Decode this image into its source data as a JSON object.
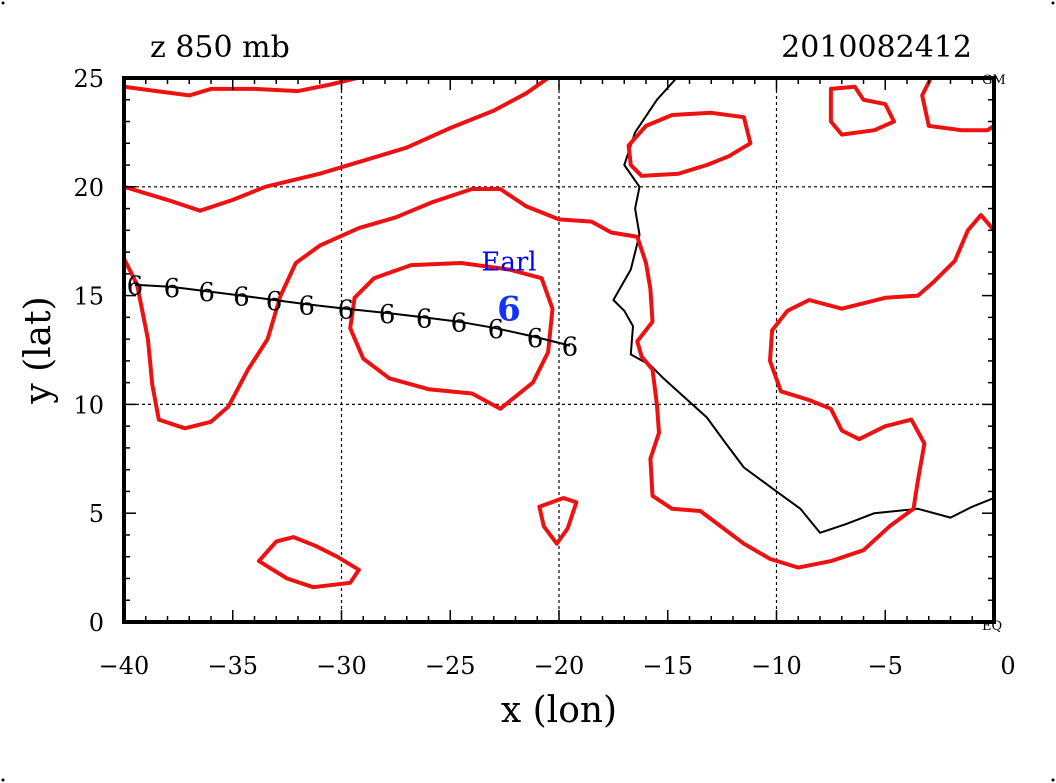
{
  "header": {
    "field": "z 850 mb",
    "datetime": "2010082412"
  },
  "axes": {
    "xlabel": "x (lon)",
    "ylabel": "y (lat)",
    "xlim": [
      -40,
      0
    ],
    "ylim": [
      0,
      25
    ],
    "xticks": [
      -40,
      -35,
      -30,
      -25,
      -20,
      -15,
      -10,
      -5,
      0
    ],
    "yticks": [
      0,
      5,
      10,
      15,
      20,
      25
    ],
    "gridlines_lon": [
      -30,
      -20,
      -10
    ],
    "gridlines_lat": [
      10,
      20
    ]
  },
  "corner_labels": {
    "top_right": "GM",
    "bottom_right": "EQ"
  },
  "storm": {
    "name": "Earl",
    "symbol": "6",
    "name_color": "#0000ff",
    "current_position": {
      "lon": -22.3,
      "lat": 14.5
    },
    "track": [
      {
        "lon": -39.5,
        "lat": 15.5
      },
      {
        "lon": -37.8,
        "lat": 15.4
      },
      {
        "lon": -36.2,
        "lat": 15.2
      },
      {
        "lon": -34.6,
        "lat": 15.0
      },
      {
        "lon": -33.1,
        "lat": 14.8
      },
      {
        "lon": -31.6,
        "lat": 14.6
      },
      {
        "lon": -29.8,
        "lat": 14.4
      },
      {
        "lon": -27.9,
        "lat": 14.2
      },
      {
        "lon": -26.2,
        "lat": 14.0
      },
      {
        "lon": -24.6,
        "lat": 13.8
      },
      {
        "lon": -22.9,
        "lat": 13.5
      },
      {
        "lon": -21.1,
        "lat": 13.1
      },
      {
        "lon": -19.5,
        "lat": 12.7
      }
    ]
  },
  "colors": {
    "contour": "#ee1111",
    "coastline": "#000000",
    "grid": "#000000",
    "storm_current": "#1133ff"
  },
  "contours": [
    [
      [
        -40,
        24.6
      ],
      [
        -38.5,
        24.4
      ],
      [
        -37,
        24.2
      ],
      [
        -36,
        24.5
      ],
      [
        -34,
        24.5
      ],
      [
        -32,
        24.4
      ],
      [
        -30.5,
        24.7
      ],
      [
        -29.3,
        25
      ]
    ],
    [
      [
        -40,
        20
      ],
      [
        -38,
        19.4
      ],
      [
        -36.5,
        18.9
      ],
      [
        -35,
        19.4
      ],
      [
        -33.5,
        20
      ],
      [
        -31,
        20.6
      ],
      [
        -29,
        21.2
      ],
      [
        -27,
        21.8
      ],
      [
        -25,
        22.7
      ],
      [
        -23,
        23.5
      ],
      [
        -21.5,
        24.3
      ],
      [
        -20.5,
        25
      ]
    ],
    [
      [
        -40,
        16.7
      ],
      [
        -39.4,
        15.5
      ],
      [
        -38.9,
        13
      ],
      [
        -38.7,
        10.9
      ],
      [
        -38.4,
        9.3
      ],
      [
        -37.2,
        8.9
      ],
      [
        -36,
        9.2
      ],
      [
        -35.2,
        9.9
      ],
      [
        -34.3,
        11.6
      ],
      [
        -33.4,
        13
      ],
      [
        -32.8,
        15
      ],
      [
        -32.1,
        16.5
      ],
      [
        -31,
        17.3
      ],
      [
        -29.2,
        18.1
      ],
      [
        -27.5,
        18.6
      ],
      [
        -25.8,
        19.3
      ],
      [
        -24,
        19.9
      ],
      [
        -22.7,
        19.9
      ],
      [
        -21.5,
        19.1
      ],
      [
        -20,
        18.5
      ],
      [
        -18.5,
        18.4
      ],
      [
        -17.6,
        17.9
      ],
      [
        -16.4,
        17.7
      ],
      [
        -16,
        16.5
      ],
      [
        -15.8,
        15.3
      ],
      [
        -15.7,
        13.8
      ],
      [
        -16.4,
        12.9
      ],
      [
        -16.2,
        12.2
      ],
      [
        -15.7,
        11.6
      ],
      [
        -15.5,
        10
      ],
      [
        -15.4,
        8.7
      ],
      [
        -15.8,
        7.5
      ],
      [
        -15.7,
        5.8
      ],
      [
        -14.8,
        5.2
      ],
      [
        -13.5,
        5.1
      ],
      [
        -12.7,
        4.5
      ],
      [
        -11.5,
        3.6
      ],
      [
        -10.3,
        2.9
      ],
      [
        -9,
        2.5
      ],
      [
        -7.5,
        2.8
      ],
      [
        -6,
        3.3
      ],
      [
        -4.8,
        4.4
      ],
      [
        -3.7,
        5.2
      ],
      [
        -3.5,
        6.5
      ],
      [
        -3.2,
        8.2
      ],
      [
        -3.8,
        9.3
      ],
      [
        -5,
        9
      ],
      [
        -6.2,
        8.4
      ],
      [
        -7,
        8.8
      ],
      [
        -7.5,
        9.8
      ],
      [
        -8.5,
        10.2
      ],
      [
        -9.8,
        10.6
      ],
      [
        -10.3,
        12
      ],
      [
        -10.2,
        13.4
      ],
      [
        -9.5,
        14.3
      ],
      [
        -8.5,
        14.8
      ],
      [
        -7,
        14.4
      ],
      [
        -5,
        14.9
      ],
      [
        -3.5,
        15
      ],
      [
        -2.8,
        15.6
      ],
      [
        -1.8,
        16.6
      ],
      [
        -1.2,
        18
      ],
      [
        -0.6,
        18.7
      ],
      [
        0,
        18
      ]
    ],
    [
      [
        -29.4,
        14.9
      ],
      [
        -28.5,
        15.8
      ],
      [
        -26.8,
        16.4
      ],
      [
        -24.5,
        16.5
      ],
      [
        -22.3,
        16.2
      ],
      [
        -20.8,
        15.8
      ],
      [
        -20.3,
        14.4
      ],
      [
        -20.5,
        12.4
      ],
      [
        -21.2,
        11
      ],
      [
        -22.7,
        9.8
      ],
      [
        -24,
        10.5
      ],
      [
        -26,
        10.7
      ],
      [
        -27.8,
        11.2
      ],
      [
        -29,
        12.1
      ],
      [
        -29.6,
        13.5
      ],
      [
        -29.4,
        14.9
      ]
    ],
    [
      [
        -16.2,
        20.5
      ],
      [
        -16.7,
        21
      ],
      [
        -16.8,
        21.9
      ],
      [
        -16,
        22.8
      ],
      [
        -14.8,
        23.3
      ],
      [
        -13,
        23.4
      ],
      [
        -11.5,
        23.2
      ],
      [
        -11.2,
        22
      ],
      [
        -12.2,
        21.4
      ],
      [
        -13.2,
        21
      ],
      [
        -14.5,
        20.6
      ],
      [
        -16.2,
        20.5
      ]
    ],
    [
      [
        -33.8,
        2.8
      ],
      [
        -33,
        3.7
      ],
      [
        -32.2,
        3.9
      ],
      [
        -31.2,
        3.5
      ],
      [
        -30.2,
        3
      ],
      [
        -29.2,
        2.4
      ],
      [
        -29.6,
        1.8
      ],
      [
        -31.3,
        1.6
      ],
      [
        -32.5,
        2
      ],
      [
        -33.8,
        2.8
      ]
    ],
    [
      [
        -20.9,
        5.3
      ],
      [
        -19.8,
        5.7
      ],
      [
        -19.2,
        5.5
      ],
      [
        -19.6,
        4.3
      ],
      [
        -20.1,
        3.6
      ],
      [
        -20.7,
        4.4
      ],
      [
        -20.9,
        5.3
      ]
    ],
    [
      [
        -7.5,
        24.5
      ],
      [
        -6.4,
        24.6
      ],
      [
        -6,
        24
      ],
      [
        -5,
        23.8
      ],
      [
        -4.6,
        23
      ],
      [
        -5.5,
        22.6
      ],
      [
        -7,
        22.4
      ],
      [
        -7.5,
        23
      ],
      [
        -7.5,
        24.5
      ]
    ],
    [
      [
        -2.9,
        25
      ],
      [
        -3.3,
        24.2
      ],
      [
        -3,
        22.8
      ],
      [
        -1.5,
        22.6
      ],
      [
        -0.3,
        22.6
      ],
      [
        0,
        22.8
      ]
    ]
  ],
  "coastline": [
    [
      [
        -14.6,
        25
      ],
      [
        -15.5,
        24
      ],
      [
        -16.5,
        22.5
      ],
      [
        -17,
        21
      ],
      [
        -16.3,
        20
      ],
      [
        -16.5,
        19
      ],
      [
        -16.3,
        17.8
      ],
      [
        -16.7,
        16.2
      ],
      [
        -17.5,
        14.8
      ],
      [
        -17,
        14.3
      ],
      [
        -16.6,
        13.6
      ],
      [
        -16.7,
        12.3
      ],
      [
        -15.8,
        11.8
      ],
      [
        -15.2,
        11.2
      ],
      [
        -14.2,
        10.3
      ],
      [
        -13.2,
        9.4
      ],
      [
        -12.4,
        8.3
      ],
      [
        -11.5,
        7.1
      ],
      [
        -10,
        6
      ],
      [
        -8.9,
        5.2
      ],
      [
        -8,
        4.1
      ],
      [
        -6.8,
        4.5
      ],
      [
        -5.5,
        5
      ],
      [
        -3.5,
        5.2
      ],
      [
        -2,
        4.8
      ],
      [
        -1,
        5.3
      ],
      [
        0,
        5.7
      ]
    ]
  ]
}
